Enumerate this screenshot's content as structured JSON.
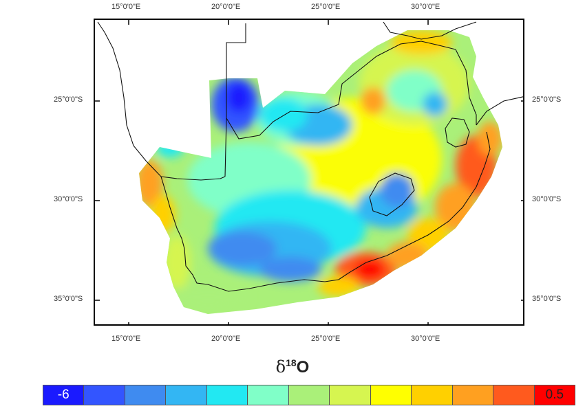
{
  "axes": {
    "top_ticks": [
      "15°0'0\"E",
      "20°0'0\"E",
      "25°0'0\"E",
      "30°0'0\"E"
    ],
    "bottom_ticks": [
      "15°0'0\"E",
      "20°0'0\"E",
      "25°0'0\"E",
      "30°0'0\"E"
    ],
    "left_ticks": [
      "25°0'0\"S",
      "30°0'0\"S",
      "35°0'0\"S"
    ],
    "right_ticks": [
      "25°0'0\"S",
      "30°0'0\"S",
      "35°0'0\"S"
    ]
  },
  "legend": {
    "title_symbol": "δ",
    "title_superscript": "18",
    "title_element": "O",
    "min_label": "-6",
    "max_label": "0.5",
    "colors": [
      "#1a1aff",
      "#3355ff",
      "#3f8bf0",
      "#33b6f3",
      "#22e8f2",
      "#80ffc8",
      "#aaf079",
      "#d6f550",
      "#ffff00",
      "#ffd000",
      "#ffa020",
      "#ff5a1e",
      "#ff0000"
    ]
  }
}
